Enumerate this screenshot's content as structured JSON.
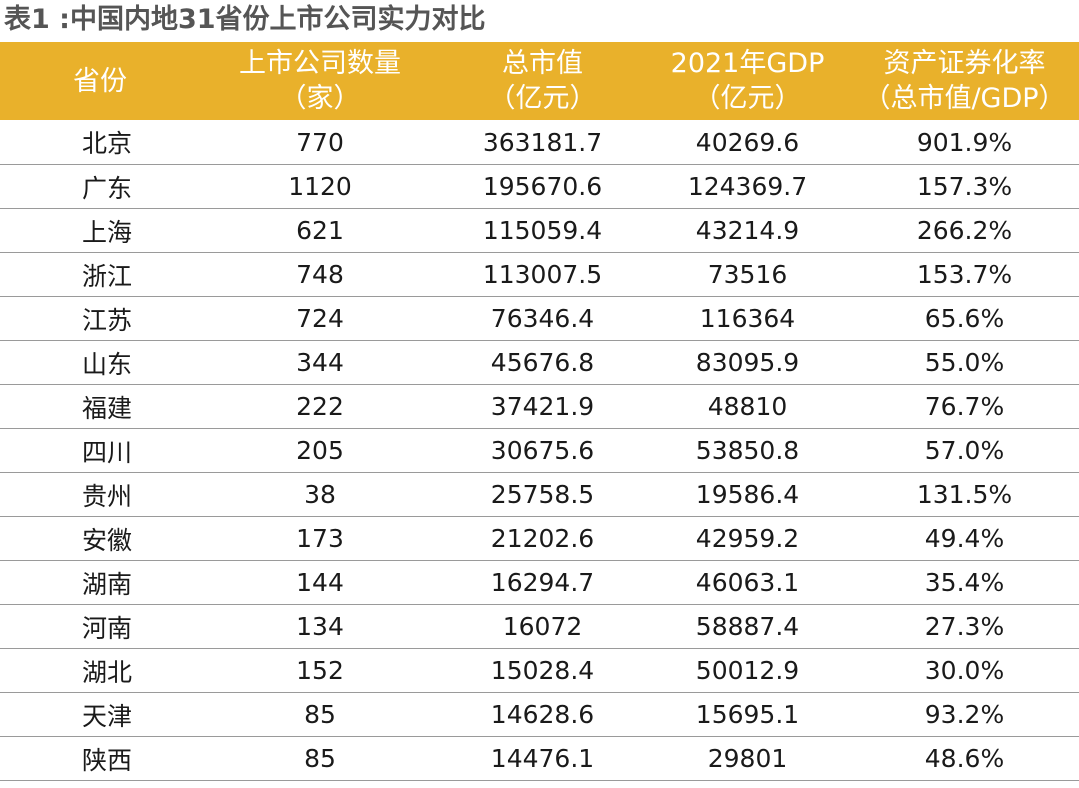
{
  "title": "表1 :中国内地31省份上市公司实力对比",
  "table": {
    "headers": [
      {
        "line1": "省份",
        "line2": ""
      },
      {
        "line1": "上市公司数量",
        "line2": "（家）"
      },
      {
        "line1": "总市值",
        "line2": "（亿元）"
      },
      {
        "line1": "2021年GDP",
        "line2": "（亿元）"
      },
      {
        "line1": "资产证券化率",
        "line2": "（总市值/GDP）"
      }
    ],
    "rows": [
      [
        "北京",
        "770",
        "363181.7",
        "40269.6",
        "901.9%"
      ],
      [
        "广东",
        "1120",
        "195670.6",
        "124369.7",
        "157.3%"
      ],
      [
        "上海",
        "621",
        "115059.4",
        "43214.9",
        "266.2%"
      ],
      [
        "浙江",
        "748",
        "113007.5",
        "73516",
        "153.7%"
      ],
      [
        "江苏",
        "724",
        "76346.4",
        "116364",
        "65.6%"
      ],
      [
        "山东",
        "344",
        "45676.8",
        "83095.9",
        "55.0%"
      ],
      [
        "福建",
        "222",
        "37421.9",
        "48810",
        "76.7%"
      ],
      [
        "四川",
        "205",
        "30675.6",
        "53850.8",
        "57.0%"
      ],
      [
        "贵州",
        "38",
        "25758.5",
        "19586.4",
        "131.5%"
      ],
      [
        "安徽",
        "173",
        "21202.6",
        "42959.2",
        "49.4%"
      ],
      [
        "湖南",
        "144",
        "16294.7",
        "46063.1",
        "35.4%"
      ],
      [
        "河南",
        "134",
        "16072",
        "58887.4",
        "27.3%"
      ],
      [
        "湖北",
        "152",
        "15028.4",
        "50012.9",
        "30.0%"
      ],
      [
        "天津",
        "85",
        "14628.6",
        "15695.1",
        "93.2%"
      ],
      [
        "陕西",
        "85",
        "14476.1",
        "29801",
        "48.6%"
      ]
    ]
  },
  "colors": {
    "header_background": "#e9b12b",
    "header_text": "#ffffff",
    "title_text": "#555555",
    "row_divider": "#9a9a9a"
  }
}
